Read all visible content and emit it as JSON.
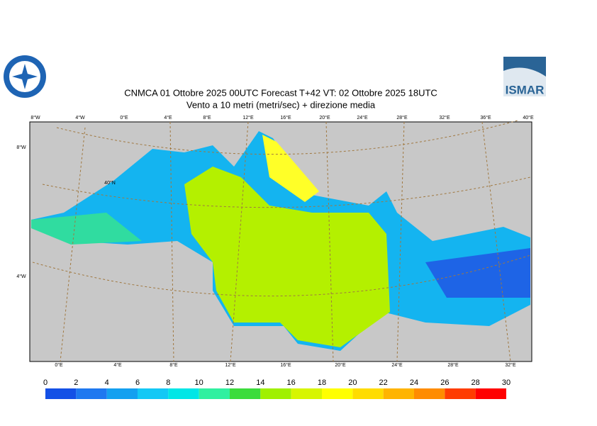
{
  "header": {
    "title": "CNMCA 01  Ottobre  2025 00UTC Forecast T+42 VT: 02  Ottobre  2025 18UTC",
    "subtitle": "Vento a 10 metri (metri/sec) + direzione media",
    "logo_right": "ISMAR"
  },
  "map": {
    "top_labels": [
      "8°W",
      "4°W",
      "0°E",
      "4°E",
      "8°E",
      "12°E",
      "16°E",
      "20°E",
      "24°E",
      "28°E",
      "32°E",
      "36°E",
      "40°E"
    ],
    "bottom_labels": [
      "0°E",
      "4°E",
      "8°E",
      "12°E",
      "16°E",
      "20°E",
      "24°E",
      "28°E",
      "32°E"
    ],
    "left_labels": [
      "8°W",
      "40°N",
      "4°W"
    ]
  },
  "colorbar": {
    "ticks": [
      0,
      2,
      4,
      6,
      8,
      10,
      12,
      14,
      16,
      18,
      20,
      22,
      24,
      26,
      28,
      30
    ],
    "colors": [
      "#1450e6",
      "#1e78f0",
      "#14a0f0",
      "#14c8f5",
      "#00e6e6",
      "#30f0a0",
      "#3cdc3c",
      "#a0f000",
      "#d7f500",
      "#ffff00",
      "#ffdc00",
      "#ffb400",
      "#ff8c00",
      "#ff3c00",
      "#ff0000"
    ]
  }
}
